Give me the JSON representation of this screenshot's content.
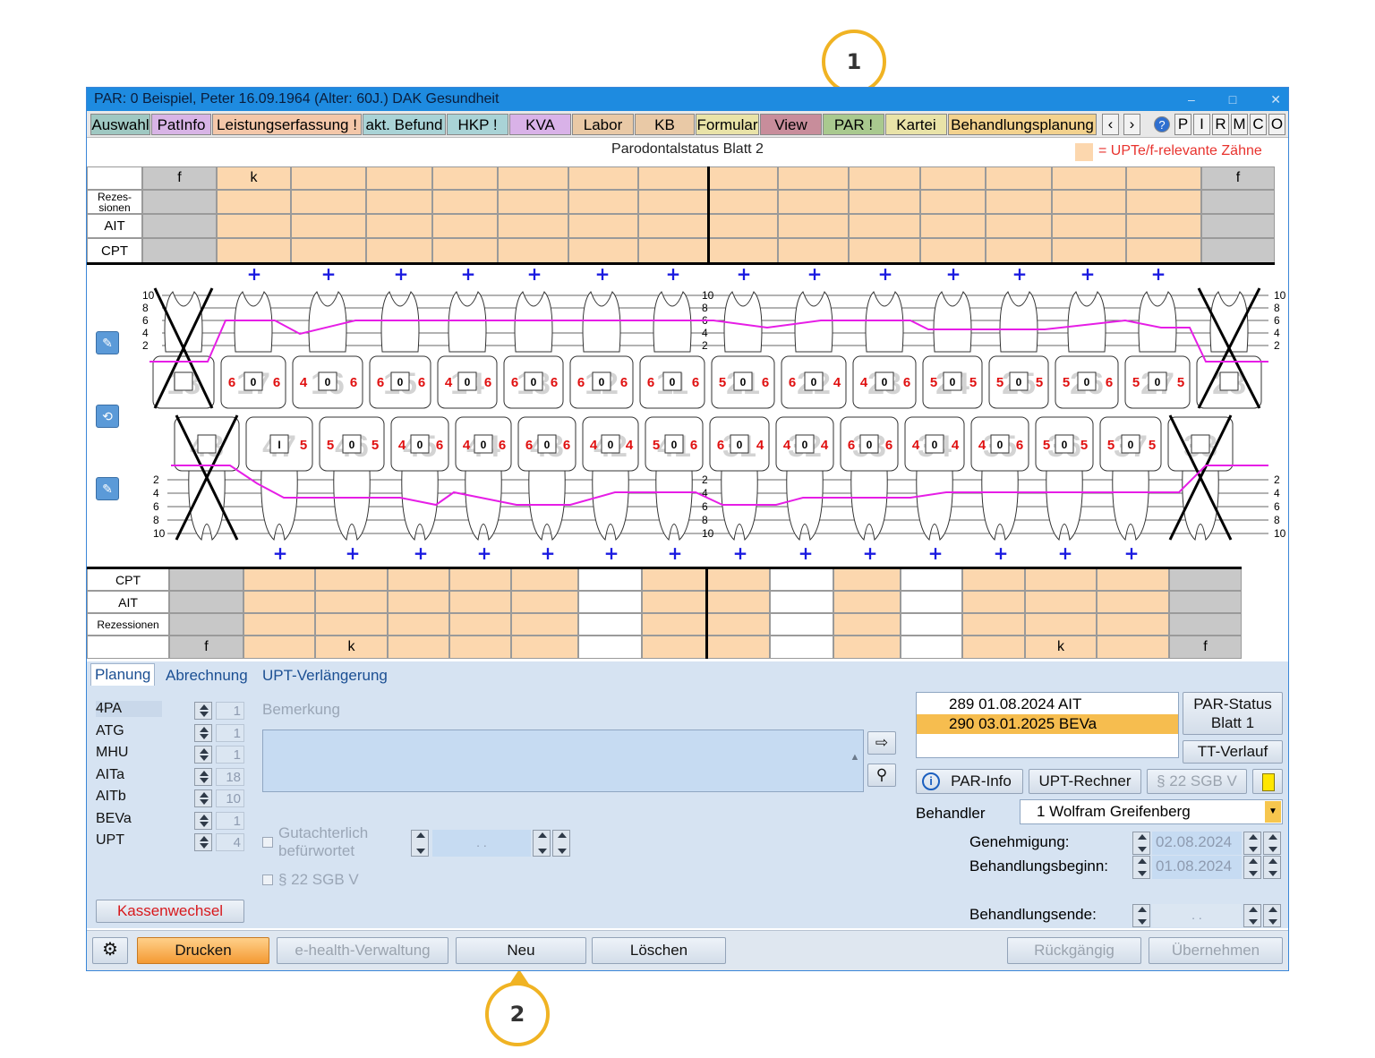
{
  "callouts": {
    "one": "1",
    "two": "2"
  },
  "window": {
    "title": "PAR: 0  Beispiel, Peter  16.09.1964 (Alter: 60J.)  DAK Gesundheit",
    "minimize": "–",
    "maximize": "□",
    "close": "✕"
  },
  "toolbar": {
    "tabs": [
      {
        "label": "Auswahl",
        "color": "#9fc8c2"
      },
      {
        "label": "PatInfo",
        "color": "#d8b4e6"
      },
      {
        "label": "Leistungserfassung !",
        "color": "#f4c7a9"
      },
      {
        "label": "akt. Befund",
        "color": "#a9d3d6"
      },
      {
        "label": "HKP !",
        "color": "#a9d3d6"
      },
      {
        "label": "KVA",
        "color": "#d9b2e8"
      },
      {
        "label": "Labor",
        "color": "#e9c9a6"
      },
      {
        "label": "KB",
        "color": "#e9c9a6"
      },
      {
        "label": "Formular",
        "color": "#e9e3a8"
      },
      {
        "label": "View",
        "color": "#c88d9b"
      },
      {
        "label": "PAR !",
        "color": "#a9c98f"
      },
      {
        "label": "Kartei",
        "color": "#e9e3a8"
      },
      {
        "label": "Behandlungsplanung",
        "color": "#f3d28e"
      }
    ],
    "nav_prev": "‹",
    "nav_next": "›",
    "help": "?",
    "letters": [
      "P",
      "I",
      "R",
      "M",
      "C",
      "O"
    ]
  },
  "sheet": {
    "title": "Parodontalstatus Blatt 2",
    "legend": "= UPTe/f-relevante Zähne",
    "legend_color": "#fcd7ae"
  },
  "upper_table": {
    "row_labels": [
      "Rezes-\nsionen",
      "AIT",
      "CPT"
    ],
    "head": [
      "f",
      "k",
      "",
      "",
      "",
      "",
      "",
      "",
      "",
      "",
      "",
      "",
      "",
      "",
      "f"
    ]
  },
  "lower_table": {
    "row_labels": [
      "CPT",
      "AIT",
      "Rezessionen"
    ],
    "foot": [
      "f",
      "",
      "k",
      "",
      "",
      "",
      "",
      "",
      "",
      "",
      "",
      "",
      "",
      "k",
      "",
      "f"
    ]
  },
  "chart": {
    "upper_scale": [
      "10",
      "8",
      "6",
      "4",
      "2"
    ],
    "lower_scale": [
      "2",
      "4",
      "6",
      "8",
      "10"
    ],
    "upper_teeth": [
      "18",
      "17",
      "16",
      "15",
      "14",
      "13",
      "12",
      "11",
      "21",
      "22",
      "23",
      "24",
      "25",
      "26",
      "27",
      "28"
    ],
    "lower_teeth": [
      "48",
      "47",
      "46",
      "45",
      "44",
      "43",
      "42",
      "41",
      "31",
      "32",
      "33",
      "34",
      "35",
      "36",
      "37",
      "38"
    ],
    "upper_pockets": [
      [
        "",
        ""
      ],
      [
        "6",
        "6"
      ],
      [
        "4",
        "6"
      ],
      [
        "6",
        "6"
      ],
      [
        "4",
        "6"
      ],
      [
        "6",
        "6"
      ],
      [
        "6",
        "6"
      ],
      [
        "6",
        "6"
      ],
      [
        "5",
        "6"
      ],
      [
        "6",
        "4"
      ],
      [
        "4",
        "6"
      ],
      [
        "5",
        "5"
      ],
      [
        "5",
        "5"
      ],
      [
        "5",
        "6"
      ],
      [
        "5",
        "5"
      ],
      [
        "",
        ""
      ]
    ],
    "upper_mid": [
      "",
      "0",
      "0",
      "0",
      "0",
      "0",
      "0",
      "0",
      "0",
      "0",
      "0",
      "0",
      "0",
      "0",
      "0",
      ""
    ],
    "lower_pockets": [
      [
        "",
        ""
      ],
      [
        "",
        "5"
      ],
      [
        "5",
        "5"
      ],
      [
        "4",
        "6"
      ],
      [
        "4",
        "6"
      ],
      [
        "6",
        "6"
      ],
      [
        "4",
        "4"
      ],
      [
        "5",
        "6"
      ],
      [
        "6",
        "4"
      ],
      [
        "4",
        "4"
      ],
      [
        "6",
        "6"
      ],
      [
        "4",
        "4"
      ],
      [
        "4",
        "6"
      ],
      [
        "5",
        "5"
      ],
      [
        "5",
        "5"
      ],
      [
        "",
        ""
      ]
    ],
    "lower_mid": [
      "",
      "I",
      "0",
      "0",
      "0",
      "0",
      "0",
      "0",
      "0",
      "0",
      "0",
      "0",
      "0",
      "0",
      "0",
      ""
    ],
    "missing_upper": [
      0,
      15
    ],
    "missing_lower": [
      0,
      15
    ],
    "plus": "+"
  },
  "planning": {
    "tabs": [
      "Planung",
      "Abrechnung",
      "UPT-Verlängerung"
    ],
    "services": [
      {
        "code": "4PA",
        "value": "1"
      },
      {
        "code": "ATG",
        "value": "1"
      },
      {
        "code": "MHU",
        "value": "1"
      },
      {
        "code": "AITa",
        "value": "18"
      },
      {
        "code": "AITb",
        "value": "10"
      },
      {
        "code": "BEVa",
        "value": "1"
      },
      {
        "code": "UPT",
        "value": "4"
      }
    ],
    "remark_label": "Bemerkung",
    "remark_value": "",
    "gutachter": "Gutachterlich\nbefürwortet",
    "gutachter_date": " .  .",
    "sgb": "§ 22 SGB V",
    "kassenwechsel": "Kassenwechsel",
    "history": [
      {
        "num": "289",
        "date": "01.08.2024",
        "type": "AIT",
        "selected": false
      },
      {
        "num": "290",
        "date": "03.01.2025",
        "type": "BEVa",
        "selected": true
      }
    ],
    "par_status": "PAR-Status\nBlatt 1",
    "tt_verlauf": "TT-Verlauf",
    "par_info": "PAR-Info",
    "upt_rechner": "UPT-Rechner",
    "sgb_btn": "§ 22 SGB V",
    "behandler_label": "Behandler",
    "behandler_value": "1 Wolfram Greifenberg",
    "genehmigung_label": "Genehmigung:",
    "genehmigung_value": "02.08.2024",
    "beginn_label": "Behandlungsbeginn:",
    "beginn_value": "01.08.2024",
    "ende_label": "Behandlungsende:",
    "ende_value": " .  ."
  },
  "bottom": {
    "drucken": "Drucken",
    "ehealth": "e-health-Verwaltung",
    "neu": "Neu",
    "loeschen": "Löschen",
    "rueckgaengig": "Rückgängig",
    "uebernehmen": "Übernehmen"
  },
  "colors": {
    "peach": "#fcd7ae",
    "grey": "#c8c8c8",
    "probe": "#e61ee6",
    "pocket": "#e01010"
  }
}
